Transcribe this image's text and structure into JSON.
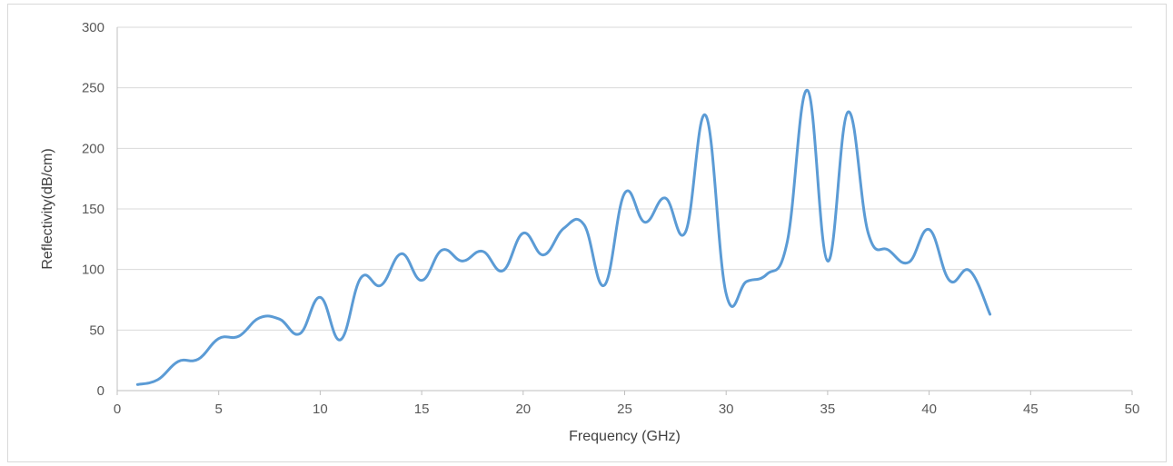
{
  "chart_data": {
    "type": "line",
    "title": "",
    "xlabel": "Frequency (GHz)",
    "ylabel": "Reflectivity(dB/cm)",
    "xlim": [
      0,
      50
    ],
    "ylim": [
      0,
      300
    ],
    "xticks": [
      0,
      5,
      10,
      15,
      20,
      25,
      30,
      35,
      40,
      45,
      50
    ],
    "yticks": [
      0,
      50,
      100,
      150,
      200,
      250,
      300
    ],
    "grid": "horizontal",
    "legend": "none",
    "series": [
      {
        "color": "#5b9bd5",
        "x": [
          1,
          2,
          3,
          4,
          5,
          6,
          7,
          8,
          9,
          10,
          11,
          12,
          13,
          14,
          15,
          16,
          17,
          18,
          19,
          20,
          21,
          22,
          23,
          24,
          25,
          26,
          27,
          28,
          29,
          30,
          31,
          32,
          33,
          34,
          35,
          36,
          37,
          38,
          39,
          40,
          41,
          42,
          43
        ],
        "y": [
          5,
          9,
          24,
          26,
          43,
          45,
          60,
          59,
          47,
          77,
          42,
          93,
          87,
          113,
          91,
          116,
          107,
          115,
          99,
          130,
          112,
          134,
          137,
          87,
          163,
          139,
          159,
          131,
          227,
          80,
          90,
          96,
          122,
          248,
          107,
          230,
          130,
          116,
          106,
          133,
          91,
          99,
          63
        ]
      }
    ]
  }
}
